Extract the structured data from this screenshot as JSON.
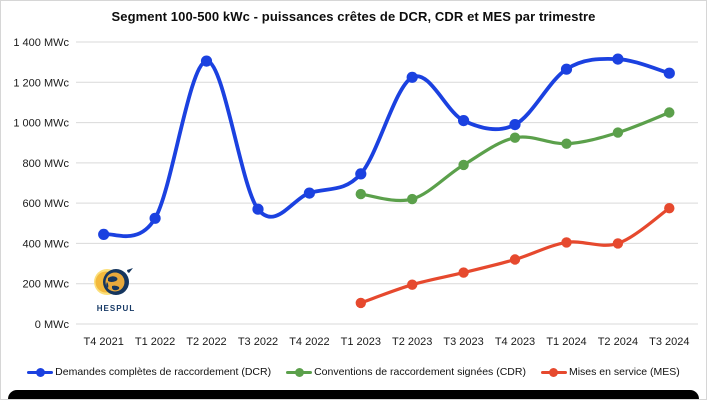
{
  "title": "Segment 100-500 kWc - puissances crêtes de DCR, CDR et MES par trimestre",
  "chart_data": {
    "type": "line",
    "smooth": true,
    "grid": true,
    "legend_position": "bottom",
    "categories": [
      "T4 2021",
      "T1 2022",
      "T2 2022",
      "T3 2022",
      "T4 2022",
      "T1 2023",
      "T2 2023",
      "T3 2023",
      "T4 2023",
      "T1 2024",
      "T2 2024",
      "T3 2024"
    ],
    "ylim": [
      0,
      1400
    ],
    "ytick_step": 200,
    "yticks": [
      "0 MWc",
      "200 MWc",
      "400 MWc",
      "600 MWc",
      "800 MWc",
      "1 000 MWc",
      "1 200 MWc",
      "1 400 MWc"
    ],
    "series": [
      {
        "name": "Demandes complètes de raccordement (DCR)",
        "short": "DCR",
        "color": "#1b41e0",
        "values": [
          445,
          525,
          1305,
          570,
          650,
          745,
          1225,
          1010,
          990,
          1265,
          1315,
          1245
        ]
      },
      {
        "name": "Conventions de raccordement signées (CDR)",
        "short": "CDR",
        "color": "#5ba04b",
        "values": [
          null,
          null,
          null,
          null,
          null,
          645,
          620,
          790,
          925,
          895,
          950,
          1050
        ]
      },
      {
        "name": "Mises en service (MES)",
        "short": "MES",
        "color": "#e6492e",
        "values": [
          null,
          null,
          null,
          null,
          null,
          105,
          195,
          255,
          320,
          405,
          400,
          575
        ]
      }
    ],
    "grid_color": "#d9d9d9",
    "axis_label_color": "#1a1a1a"
  },
  "logo": {
    "text": "HESPUL"
  }
}
